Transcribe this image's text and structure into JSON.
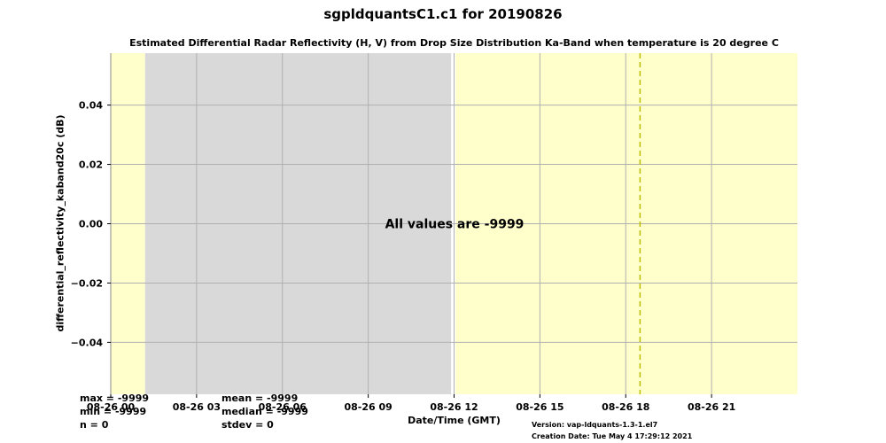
{
  "chart_data": {
    "type": "line",
    "title": "sgpldquantsC1.c1 for 20190826",
    "subtitle": "Estimated Differential Radar Reflectivity (H, V) from Drop Size Distribution Ka-Band when temperature is 20 degree C",
    "xlabel": "Date/Time (GMT)",
    "ylabel": "differential_reflectivity_kaband20c (dB)",
    "xlim": [
      0,
      24
    ],
    "ylim": [
      -0.0575,
      0.0575
    ],
    "x_ticks": [
      {
        "v": 0,
        "label": "08-26 00"
      },
      {
        "v": 3,
        "label": "08-26 03"
      },
      {
        "v": 6,
        "label": "08-26 06"
      },
      {
        "v": 9,
        "label": "08-26 09"
      },
      {
        "v": 12,
        "label": "08-26 12"
      },
      {
        "v": 15,
        "label": "08-26 15"
      },
      {
        "v": 18,
        "label": "08-26 18"
      },
      {
        "v": 21,
        "label": "08-26 21"
      }
    ],
    "y_ticks": [
      {
        "v": 0.04,
        "label": "0.04"
      },
      {
        "v": 0.02,
        "label": "0.02"
      },
      {
        "v": 0.0,
        "label": "0.00"
      },
      {
        "v": -0.02,
        "label": "−0.02"
      },
      {
        "v": -0.04,
        "label": "−0.04"
      }
    ],
    "shaded_regions": [
      {
        "start": 0,
        "end": 1.2,
        "color": "#ffffcc"
      },
      {
        "start": 1.2,
        "end": 11.9,
        "color": "#d9d9d9"
      },
      {
        "start": 11.9,
        "end": 12.05,
        "color": "#ffffff"
      },
      {
        "start": 12.05,
        "end": 24,
        "color": "#ffffcc"
      }
    ],
    "vertical_dashed_line": {
      "x": 18.5,
      "color": "#bdbd00"
    },
    "grid": true,
    "annotation": "All values are -9999"
  },
  "stats": {
    "max": "max = -9999",
    "min": "min = -9999",
    "n": "n = 0",
    "mean": "mean = -9999",
    "median": "median = -9999",
    "stdev": "stdev = 0"
  },
  "footer": {
    "version": "Version: vap-ldquants-1.3-1.el7",
    "created": "Creation Date: Tue May  4 17:29:12 2021"
  }
}
